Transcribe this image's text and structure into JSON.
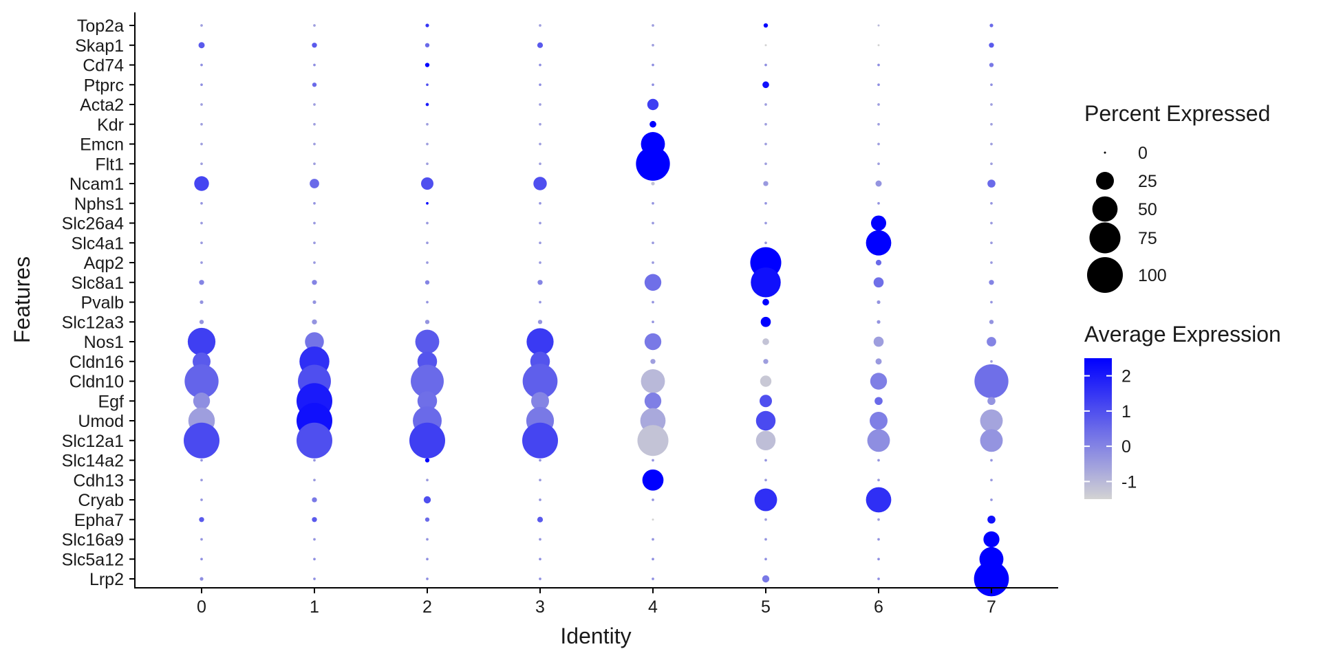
{
  "chart_data": {
    "type": "scatter",
    "subtype": "dot-plot",
    "xlabel": "Identity",
    "ylabel": "Features",
    "categories": [
      "0",
      "1",
      "2",
      "3",
      "4",
      "5",
      "6",
      "7"
    ],
    "features": [
      "Top2a",
      "Skap1",
      "Cd74",
      "Ptprc",
      "Acta2",
      "Kdr",
      "Emcn",
      "Flt1",
      "Ncam1",
      "Nphs1",
      "Slc26a4",
      "Slc4a1",
      "Aqp2",
      "Slc8a1",
      "Pvalb",
      "Slc12a3",
      "Nos1",
      "Cldn16",
      "Cldn10",
      "Egf",
      "Umod",
      "Slc12a1",
      "Slc14a2",
      "Cdh13",
      "Cryab",
      "Epha7",
      "Slc16a9",
      "Slc5a12",
      "Lrp2"
    ],
    "grid": false,
    "size_legend": {
      "title": "Percent Expressed",
      "ticks": [
        "0",
        "25",
        "50",
        "75",
        "100"
      ],
      "values": [
        0,
        25,
        50,
        75,
        100
      ]
    },
    "color_legend": {
      "title": "Average Expression",
      "ticks": [
        "2",
        "1",
        "0",
        "-1"
      ],
      "tick_values": [
        2,
        1,
        0,
        -1
      ],
      "range": [
        -1.5,
        2.5
      ],
      "low_color": "#d3d3d3",
      "high_color": "#0000ff"
    },
    "pct_expressed": {
      "Top2a": [
        0.5,
        0.5,
        1,
        0.5,
        0.5,
        1.5,
        0.3,
        1
      ],
      "Skap1": [
        3,
        2,
        1.5,
        2.5,
        0.5,
        0.3,
        0.3,
        2
      ],
      "Cd74": [
        0.5,
        0.5,
        1.5,
        0.5,
        0.5,
        0.5,
        0.5,
        1.5
      ],
      "Ptprc": [
        0.5,
        1.5,
        0.5,
        0.5,
        0.5,
        3.5,
        0.5,
        0.5
      ],
      "Acta2": [
        0.5,
        0.5,
        0.8,
        0.5,
        10,
        0.5,
        0.5,
        0.5
      ],
      "Kdr": [
        0.5,
        0.5,
        0.5,
        0.5,
        3.5,
        0.5,
        0.5,
        0.5
      ],
      "Emcn": [
        0.5,
        0.5,
        0.5,
        0.5,
        45,
        0.5,
        0.5,
        0.5
      ],
      "Flt1": [
        0.5,
        0.5,
        0.5,
        0.5,
        90,
        0.5,
        0.5,
        0.5
      ],
      "Ncam1": [
        17,
        7,
        12,
        14,
        1,
        2,
        3,
        5
      ],
      "Nphs1": [
        0.5,
        0.5,
        0.5,
        0.5,
        0.5,
        0.5,
        0.5,
        0.5
      ],
      "Slc26a4": [
        0.5,
        0.5,
        0.5,
        0.5,
        0.5,
        0.5,
        18,
        0.5
      ],
      "Slc4a1": [
        0.5,
        0.5,
        0.5,
        0.5,
        0.5,
        0.5,
        50,
        0.5
      ],
      "Aqp2": [
        0.5,
        0.5,
        0.5,
        0.5,
        0.5,
        75,
        2.5,
        0.5
      ],
      "Slc8a1": [
        2,
        2,
        1.5,
        2,
        22,
        70,
        8,
        2
      ],
      "Pvalb": [
        1,
        1,
        0.5,
        0.5,
        0.5,
        3.5,
        1,
        0.5
      ],
      "Slc12a3": [
        1.5,
        2,
        1.5,
        1.5,
        0.5,
        8,
        1,
        1.5
      ],
      "Nos1": [
        60,
        28,
        45,
        57,
        22,
        3.5,
        8,
        7
      ],
      "Cldn16": [
        25,
        70,
        30,
        30,
        2,
        2,
        3,
        0.5
      ],
      "Cldn10": [
        90,
        85,
        85,
        95,
        45,
        10,
        22,
        90
      ],
      "Egf": [
        22,
        100,
        30,
        25,
        22,
        12,
        5,
        5
      ],
      "Umod": [
        55,
        100,
        65,
        60,
        50,
        30,
        25,
        40
      ],
      "Slc12a1": [
        100,
        100,
        100,
        100,
        75,
        30,
        40,
        40
      ],
      "Slc14a2": [
        0.5,
        0.5,
        1.5,
        0.5,
        0.5,
        0.5,
        0.5,
        0.5
      ],
      "Cdh13": [
        0.5,
        0.5,
        0.5,
        0.5,
        35,
        0.5,
        0.5,
        0.5
      ],
      "Cryab": [
        0.5,
        2,
        4,
        0.5,
        0.5,
        40,
        50,
        0.5
      ],
      "Epha7": [
        2,
        2,
        1.5,
        2.5,
        0.3,
        0.5,
        0.5,
        5
      ],
      "Slc16a9": [
        0.5,
        0.5,
        0.5,
        0.5,
        0.5,
        0.5,
        0.5,
        20
      ],
      "Slc5a12": [
        0.5,
        0.5,
        0.5,
        0.5,
        0.5,
        0.5,
        0.5,
        45
      ],
      "Lrp2": [
        1,
        0.5,
        0.5,
        0.5,
        0.5,
        4,
        0.5,
        95
      ]
    },
    "avg_exp": {
      "Top2a": [
        -0.5,
        -0.5,
        1.5,
        -0.5,
        -0.5,
        2.5,
        -1,
        0.5
      ],
      "Skap1": [
        0.8,
        0.8,
        0.5,
        0.8,
        -0.5,
        -1.5,
        -1.5,
        0.8
      ],
      "Cd74": [
        -0.2,
        -0.2,
        2.5,
        -0.2,
        -0.2,
        -0.2,
        -0.2,
        0.2
      ],
      "Ptprc": [
        -0.2,
        0.5,
        1,
        -0.2,
        -0.2,
        2.2,
        -0.2,
        -0.2
      ],
      "Acta2": [
        -0.5,
        -0.5,
        2,
        -0.5,
        1.3,
        -0.5,
        -0.5,
        -0.5
      ],
      "Kdr": [
        -0.5,
        -0.5,
        -0.5,
        -0.5,
        2.5,
        -0.5,
        -0.5,
        -0.5
      ],
      "Emcn": [
        -0.5,
        -0.5,
        -0.5,
        -0.5,
        2.5,
        -0.5,
        -0.5,
        -0.5
      ],
      "Flt1": [
        -0.5,
        -0.5,
        -0.5,
        -0.5,
        2.5,
        -0.5,
        -0.5,
        -0.5
      ],
      "Ncam1": [
        1.2,
        0.5,
        1,
        1,
        -1.2,
        -0.4,
        -0.3,
        0.5
      ],
      "Nphs1": [
        -0.3,
        -0.3,
        2.5,
        -0.3,
        -0.3,
        -0.3,
        -0.3,
        -0.3
      ],
      "Slc26a4": [
        -0.4,
        -0.4,
        -0.4,
        -0.4,
        -0.4,
        -0.4,
        2.5,
        -0.4
      ],
      "Slc4a1": [
        -0.4,
        -0.4,
        -0.4,
        -0.4,
        -0.4,
        -0.4,
        2.5,
        -0.4
      ],
      "Aqp2": [
        -0.4,
        -0.4,
        -0.4,
        -0.4,
        -0.4,
        2.5,
        0.5,
        -0.4
      ],
      "Slc8a1": [
        0,
        0,
        0,
        0,
        0.4,
        2.2,
        0.4,
        0
      ],
      "Pvalb": [
        -0.3,
        -0.3,
        -0.3,
        -0.3,
        -0.3,
        2.5,
        -0.3,
        -0.3
      ],
      "Slc12a3": [
        -0.3,
        -0.3,
        -0.3,
        -0.3,
        -0.3,
        2.5,
        -0.3,
        -0.3
      ],
      "Nos1": [
        1.3,
        0.3,
        0.8,
        1.4,
        0.2,
        -1.2,
        -0.5,
        0
      ],
      "Cldn16": [
        0.8,
        1.6,
        0.9,
        0.9,
        -0.5,
        -0.5,
        -0.4,
        -0.5
      ],
      "Cldn10": [
        0.6,
        1,
        0.5,
        0.7,
        -1,
        -1.3,
        0.1,
        0.4
      ],
      "Egf": [
        -0.2,
        2,
        0.4,
        0,
        0.1,
        1,
        0.5,
        -0.3
      ],
      "Umod": [
        -0.5,
        2.2,
        0.5,
        0.2,
        -0.7,
        1.1,
        0.1,
        -0.6
      ],
      "Slc12a1": [
        1.1,
        1,
        1.3,
        1.2,
        -1.2,
        -1.1,
        -0.2,
        -0.3
      ],
      "Slc14a2": [
        -0.3,
        -0.3,
        2.5,
        -0.3,
        -0.3,
        -0.3,
        -0.3,
        -0.3
      ],
      "Cdh13": [
        -0.4,
        -0.4,
        -0.4,
        -0.4,
        2.5,
        -0.4,
        -0.4,
        -0.4
      ],
      "Cryab": [
        -0.3,
        0.2,
        1,
        -0.3,
        -0.3,
        1.6,
        1.6,
        -0.3
      ],
      "Epha7": [
        0.8,
        0.8,
        0.5,
        0.8,
        -1.5,
        -0.5,
        -0.5,
        2.2
      ],
      "Slc16a9": [
        -0.3,
        -0.3,
        -0.3,
        -0.3,
        -0.3,
        -0.3,
        -0.3,
        2.5
      ],
      "Slc5a12": [
        -0.2,
        -0.2,
        -0.2,
        -0.2,
        -0.2,
        -0.2,
        -0.2,
        2.5
      ],
      "Lrp2": [
        -0.2,
        -0.2,
        -0.2,
        -0.2,
        -0.2,
        0.2,
        -0.2,
        2.5
      ]
    }
  }
}
